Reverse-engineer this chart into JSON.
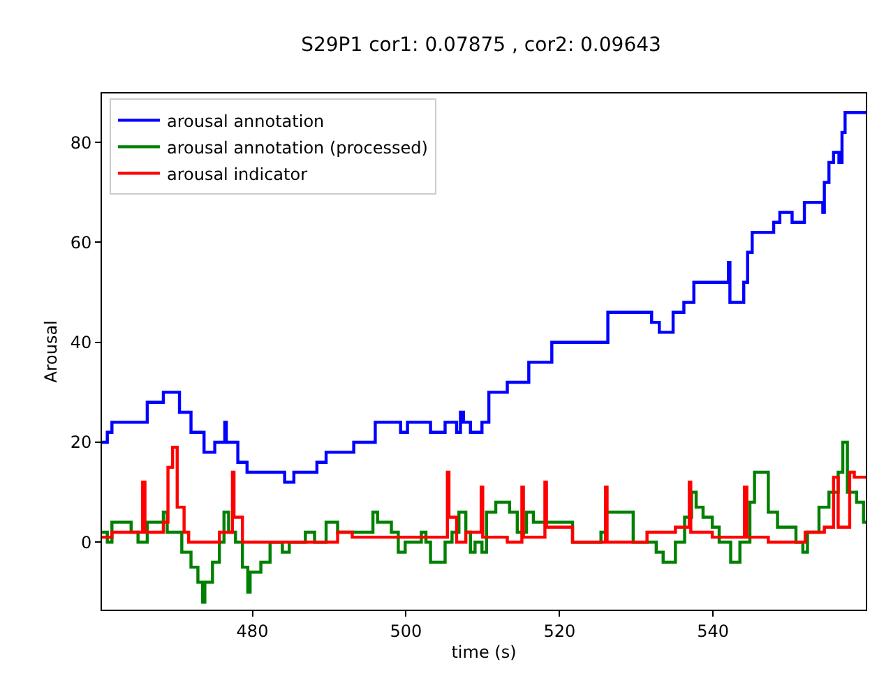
{
  "chart_data": {
    "type": "step",
    "title": "S29P1 cor1: 0.07875 , cor2: 0.09643",
    "xlabel": "time (s)",
    "ylabel": "Arousal",
    "xlim": [
      460.4,
      559.9
    ],
    "ylim": [
      -13.5,
      89.8
    ],
    "xticks": [
      480,
      500,
      520,
      540
    ],
    "yticks": [
      0,
      20,
      40,
      60,
      80
    ],
    "grid": false,
    "legend": "top left",
    "marker": "none",
    "line_style": "solid",
    "series": [
      {
        "name": "arousal annotation",
        "color": "#0000ff",
        "x": [
          460.4,
          461.1,
          461.7,
          466.3,
          468.4,
          470.5,
          472,
          473.7,
          475.1,
          476.4,
          476.6,
          478.1,
          479.3,
          484.2,
          485.4,
          488.4,
          489.6,
          493.2,
          496,
          499.3,
          500.2,
          503.2,
          505.1,
          506.6,
          507.1,
          507.5,
          508.4,
          509.9,
          510.8,
          513.2,
          516,
          519,
          526.3,
          532,
          533,
          534.8,
          536.2,
          537.5,
          542,
          542.2,
          544,
          544.5,
          545.1,
          547.9,
          548.7,
          550.3,
          551.9,
          554.3,
          554.5,
          555.1,
          555.7,
          556.4,
          556.8,
          557.2,
          559.9
        ],
        "values": [
          20,
          22,
          24,
          28,
          30,
          26,
          22,
          18,
          20,
          24,
          20,
          16,
          14,
          12,
          14,
          16,
          18,
          20,
          24,
          22,
          24,
          22,
          24,
          22,
          26,
          24,
          22,
          24,
          30,
          32,
          36,
          40,
          46,
          44,
          42,
          46,
          48,
          52,
          56,
          48,
          52,
          58,
          62,
          64,
          66,
          64,
          68,
          66,
          72,
          76,
          78,
          76,
          82,
          86,
          86
        ]
      },
      {
        "name": "arousal annotation (processed)",
        "color": "#008000",
        "x": [
          460.4,
          461.1,
          461.7,
          464.2,
          465.1,
          466.3,
          468.4,
          468.9,
          470.8,
          472,
          472.9,
          473.5,
          473.8,
          474.8,
          475.7,
          476.3,
          476.9,
          477.8,
          478.7,
          479.4,
          479.7,
          481.1,
          482.3,
          483.9,
          484.8,
          486.9,
          488.1,
          489.6,
          491.1,
          495.7,
          496.3,
          498.1,
          499,
          499.9,
          502,
          502.6,
          503.2,
          505.1,
          506,
          506.9,
          507.8,
          508.4,
          509,
          509.9,
          510.5,
          511.7,
          513.5,
          514.5,
          515.7,
          516.6,
          521.7,
          525.4,
          526,
          529.6,
          532.6,
          533.5,
          535.1,
          536.3,
          537.2,
          537.8,
          538.7,
          539.9,
          540.8,
          542.3,
          543.5,
          544.8,
          545.4,
          547.2,
          548.4,
          550.8,
          551.7,
          552.3,
          553.8,
          555.1,
          556.3,
          556.9,
          557.5,
          558.7,
          559.6,
          559.9
        ],
        "values": [
          2,
          0,
          4,
          2,
          0,
          4,
          6,
          2,
          -2,
          -5,
          -8,
          -12,
          -8,
          -4,
          0,
          6,
          2,
          0,
          -5,
          -10,
          -6,
          -4,
          0,
          -2,
          0,
          2,
          0,
          4,
          2,
          6,
          4,
          2,
          -2,
          0,
          2,
          0,
          -4,
          0,
          2,
          6,
          2,
          -2,
          0,
          -2,
          6,
          8,
          6,
          2,
          6,
          4,
          0,
          2,
          6,
          0,
          -2,
          -4,
          0,
          5,
          10,
          7,
          5,
          3,
          0,
          -4,
          0,
          8,
          14,
          6,
          3,
          0,
          -2,
          2,
          7,
          10,
          14,
          20,
          10,
          8,
          4,
          4
        ]
      },
      {
        "name": "arousal indicator",
        "color": "#ff0000",
        "x": [
          460.4,
          461.7,
          465.7,
          466,
          468.4,
          469,
          469.6,
          470.2,
          471.1,
          471.7,
          475.7,
          477.4,
          477.6,
          478.7,
          491.1,
          493,
          505.4,
          505.6,
          506.6,
          507.8,
          509.8,
          510,
          513.2,
          515.1,
          515.3,
          518.1,
          518.3,
          521.7,
          526,
          526.2,
          531.4,
          535.1,
          536.9,
          537.1,
          539.9,
          544.1,
          544.4,
          547.2,
          552,
          554.5,
          555.7,
          556.3,
          557.8,
          558.4,
          559.9
        ],
        "values": [
          1,
          2,
          12,
          2,
          4,
          15,
          19,
          7,
          2,
          0,
          2,
          14,
          5,
          0,
          2,
          1,
          14,
          5,
          0,
          2,
          11,
          1,
          0,
          11,
          1,
          12,
          3,
          0,
          11,
          0,
          2,
          3,
          12,
          2,
          1,
          11,
          1,
          0,
          2,
          3,
          13,
          3,
          14,
          13,
          13
        ]
      }
    ]
  }
}
